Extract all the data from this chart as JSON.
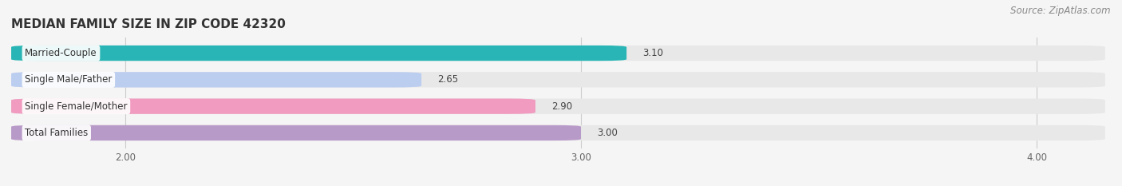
{
  "title": "MEDIAN FAMILY SIZE IN ZIP CODE 42320",
  "source": "Source: ZipAtlas.com",
  "categories": [
    "Married-Couple",
    "Single Male/Father",
    "Single Female/Mother",
    "Total Families"
  ],
  "values": [
    3.1,
    2.65,
    2.9,
    3.0
  ],
  "bar_colors": [
    "#29b5b5",
    "#bccef0",
    "#f09bbf",
    "#b89ac8"
  ],
  "bar_bg_color": "#e8e8e8",
  "xlim_left": 1.75,
  "xlim_right": 4.15,
  "xticks": [
    2.0,
    3.0,
    4.0
  ],
  "xtick_labels": [
    "2.00",
    "3.00",
    "4.00"
  ],
  "background_color": "#f5f5f5",
  "title_fontsize": 11,
  "label_fontsize": 8.5,
  "value_fontsize": 8.5,
  "source_fontsize": 8.5,
  "bar_height": 0.58,
  "bar_gap": 0.42,
  "label_bg_color": "#ffffff"
}
